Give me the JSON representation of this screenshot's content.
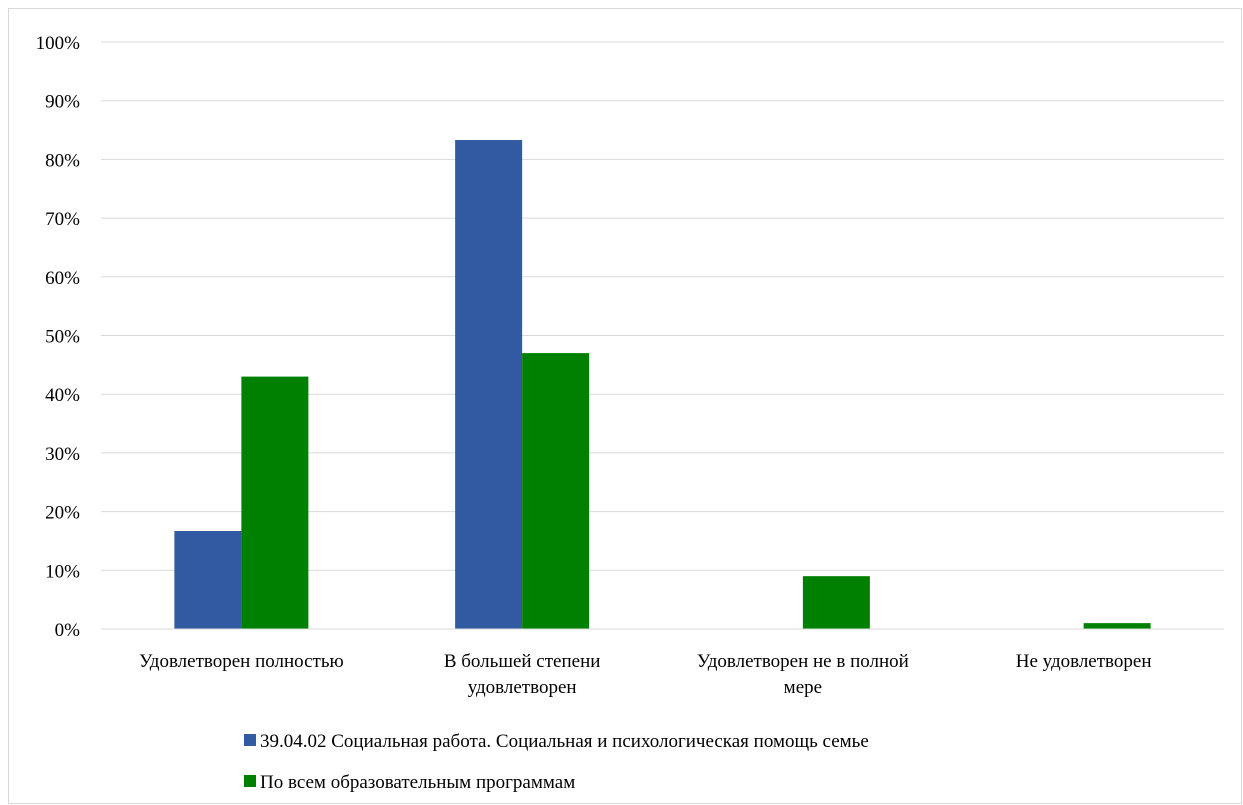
{
  "chart_data": {
    "type": "bar",
    "categories": [
      [
        "Удовлетворен полностью"
      ],
      [
        "В большей степени",
        "удовлетворен"
      ],
      [
        "Удовлетворен не в полной",
        "мере"
      ],
      [
        "Не удовлетворен"
      ]
    ],
    "series": [
      {
        "name": "39.04.02 Социальная работа. Социальная и психологическая помощь семье",
        "color": "#325aa2",
        "values": [
          16.7,
          83.3,
          0,
          0
        ]
      },
      {
        "name": "По всем образовательным программам",
        "color": "#008000",
        "values": [
          43,
          47,
          9,
          1
        ]
      }
    ],
    "ylim": [
      0,
      100
    ],
    "yticks": [
      "0%",
      "10%",
      "20%",
      "30%",
      "40%",
      "50%",
      "60%",
      "70%",
      "80%",
      "90%",
      "100%"
    ],
    "grid": true,
    "legend_position": "bottom",
    "title": "",
    "xlabel": "",
    "ylabel": ""
  }
}
